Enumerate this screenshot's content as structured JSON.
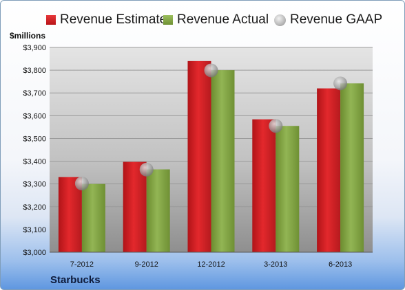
{
  "chart_data": {
    "type": "bar",
    "categories": [
      "7-2012",
      "9-2012",
      "12-2012",
      "3-2013",
      "6-2013"
    ],
    "series": [
      {
        "name": "Revenue Estimate",
        "values": [
          3330,
          3397,
          3840,
          3584,
          3720
        ],
        "color": "#d42226"
      },
      {
        "name": "Revenue Actual",
        "values": [
          3300,
          3364,
          3800,
          3555,
          3742
        ],
        "color": "#86a847"
      },
      {
        "name": "Revenue GAAP",
        "values": [
          3302,
          3363,
          3799,
          3555,
          3742
        ],
        "color": "#b0b0b0",
        "marker": "circle"
      }
    ],
    "ylim": [
      3000,
      3900
    ],
    "yticks": [
      3000,
      3100,
      3200,
      3300,
      3400,
      3500,
      3600,
      3700,
      3800,
      3900
    ],
    "ytick_labels": [
      "$3,000",
      "$3,100",
      "$3,200",
      "$3,300",
      "$3,400",
      "$3,500",
      "$3,600",
      "$3,700",
      "$3,800",
      "$3,900"
    ],
    "ylabel": "$millions",
    "grid": true,
    "legend": "top"
  },
  "footer": {
    "company": "Starbucks"
  }
}
